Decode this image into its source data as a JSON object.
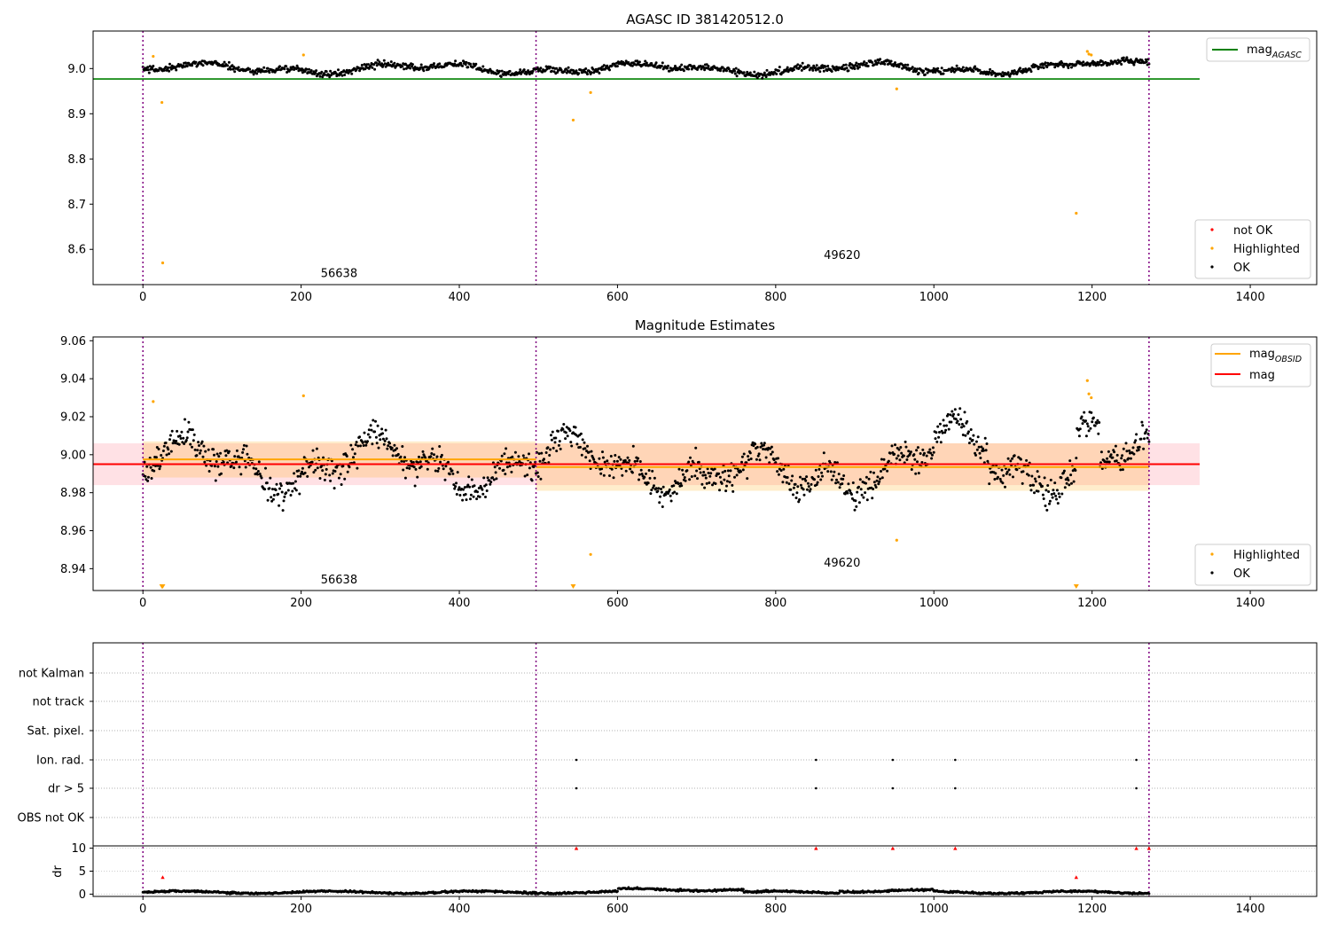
{
  "chart_data": [
    {
      "type": "scatter",
      "title": "AGASC ID 381420512.0",
      "xlim": [
        -63,
        1484
      ],
      "ylim": [
        8.522,
        9.083
      ],
      "xticks": [
        "0",
        "200",
        "400",
        "600",
        "800",
        "1000",
        "1200",
        "1400"
      ],
      "yticks": [
        "8.6",
        "8.7",
        "8.8",
        "8.9",
        "9.0"
      ],
      "obs_boundaries": [
        0,
        497,
        1272
      ],
      "obs_labels": [
        {
          "text": "56638",
          "x": 248,
          "y": 8.547
        },
        {
          "text": "49620",
          "x": 884,
          "y": 8.587
        }
      ],
      "reference_lines": [
        {
          "name": "mag_AGASC",
          "y": 8.977,
          "x_range": [
            -63,
            1336
          ],
          "color": "#008000"
        }
      ],
      "series": [
        {
          "name": "not OK",
          "color": "#ff0000",
          "points": []
        },
        {
          "name": "Highlighted",
          "color": "#ffa500",
          "points": [
            [
              13,
              9.027
            ],
            [
              24,
              8.925
            ],
            [
              25,
              8.57
            ],
            [
              203,
              9.03
            ],
            [
              544,
              8.886
            ],
            [
              566,
              8.947
            ],
            [
              953,
              8.955
            ],
            [
              1180,
              8.68
            ],
            [
              1194,
              9.038
            ],
            [
              1196,
              9.032
            ],
            [
              1199,
              9.03
            ]
          ]
        },
        {
          "name": "OK",
          "color": "#000000",
          "segments": [
            [
              0,
              1272,
              9.0
            ]
          ]
        }
      ],
      "legend": {
        "top_right": [
          "mag_AGASC"
        ],
        "bottom_right": [
          "not OK",
          "Highlighted",
          "OK"
        ]
      }
    },
    {
      "type": "scatter",
      "title": "Magnitude Estimates",
      "xlim": [
        -63,
        1484
      ],
      "ylim": [
        8.9285,
        9.062
      ],
      "xticks": [
        "0",
        "200",
        "400",
        "600",
        "800",
        "1000",
        "1200",
        "1400"
      ],
      "yticks": [
        "8.94",
        "8.96",
        "8.98",
        "9.00",
        "9.02",
        "9.04",
        "9.06"
      ],
      "obs_boundaries": [
        0,
        497,
        1272
      ],
      "obs_labels": [
        {
          "text": "56638",
          "x": 248,
          "y": 8.934
        },
        {
          "text": "49620",
          "x": 884,
          "y": 8.943
        }
      ],
      "bands": [
        {
          "x_range": [
            -63,
            1336
          ],
          "y_range": [
            8.984,
            9.006
          ],
          "color": "#ff9aa8",
          "opacity": 0.3
        },
        {
          "x_range": [
            0,
            497
          ],
          "y_range": [
            8.988,
            9.007
          ],
          "color": "#ffa500",
          "opacity": 0.2
        },
        {
          "x_range": [
            497,
            1272
          ],
          "y_range": [
            8.981,
            9.006
          ],
          "color": "#ffa500",
          "opacity": 0.2
        }
      ],
      "mean_lines": [
        {
          "name": "mag",
          "y": 8.995,
          "x_range": [
            -63,
            1336
          ],
          "color": "#ff0000"
        },
        {
          "name": "mag_OBSID",
          "y": 8.9975,
          "x_range": [
            0,
            497
          ],
          "color": "#ffa500"
        },
        {
          "name": "mag_OBSID",
          "y": 8.9935,
          "x_range": [
            497,
            1272
          ],
          "color": "#ffa500"
        }
      ],
      "series": [
        {
          "name": "Highlighted",
          "color": "#ffa500",
          "points": [
            [
              13,
              9.028
            ],
            [
              203,
              9.031
            ],
            [
              566,
              8.9475
            ],
            [
              953,
              8.955
            ],
            [
              1194,
              9.039
            ],
            [
              1196,
              9.032
            ],
            [
              1199,
              9.03
            ]
          ],
          "clipped_low": [
            24,
            25,
            544,
            1180
          ]
        },
        {
          "name": "OK",
          "color": "#000000",
          "segments": [
            [
              0,
              1272,
              8.995
            ]
          ]
        }
      ],
      "legend": {
        "top_right": [
          "mag_OBSID",
          "mag"
        ],
        "bottom_right": [
          "Highlighted",
          "OK"
        ]
      }
    },
    {
      "type": "scatter",
      "xlim": [
        -63,
        1484
      ],
      "xticks": [
        "0",
        "200",
        "400",
        "600",
        "800",
        "1000",
        "1200",
        "1400"
      ],
      "flag_categories": [
        "not Kalman",
        "not track",
        "Sat. pixel.",
        "Ion. rad.",
        "dr > 5",
        "OBS not OK"
      ],
      "flag_points": {
        "Ion. rad.": [
          548,
          851,
          948,
          1027,
          1256
        ],
        "dr > 5": [
          548,
          851,
          948,
          1027,
          1256
        ]
      },
      "obs_boundaries": [
        0,
        497,
        1272
      ]
    },
    {
      "type": "scatter",
      "ylabel": "dr",
      "xlim": [
        -63,
        1484
      ],
      "ylim": [
        -0.5,
        10.5
      ],
      "yticks": [
        "0",
        "5",
        "10"
      ],
      "xticks": [
        "0",
        "200",
        "400",
        "600",
        "800",
        "1000",
        "1200",
        "1400"
      ],
      "obs_boundaries": [
        0,
        497,
        1272
      ],
      "series": [
        {
          "name": "OK",
          "color": "#000000",
          "segments": [
            [
              0,
              1272,
              0.5
            ]
          ]
        },
        {
          "name": "not OK",
          "color": "#ff0000",
          "points": [
            [
              25,
              3.7
            ],
            [
              548,
              10
            ],
            [
              851,
              10
            ],
            [
              948,
              10
            ],
            [
              1027,
              10
            ],
            [
              1180,
              3.7
            ],
            [
              1256,
              10
            ],
            [
              1272,
              10
            ]
          ]
        }
      ]
    }
  ],
  "legend_labels": {
    "mag_agasc_main": "mag",
    "mag_agasc_sub": "AGASC",
    "mag_obsid_main": "mag",
    "mag_obsid_sub": "OBSID",
    "mag": "mag",
    "not_ok": "not OK",
    "highlighted": "Highlighted",
    "ok": "OK"
  }
}
